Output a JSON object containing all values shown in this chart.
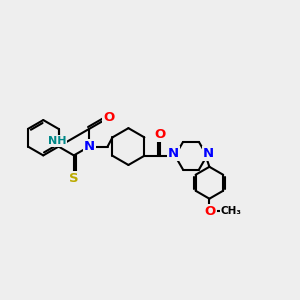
{
  "background_color": "#eeeeee",
  "bond_color": "#000000",
  "N_color": "#0000ff",
  "O_color": "#ff0000",
  "S_color": "#bbaa00",
  "H_color": "#008888",
  "label_fontsize": 8.5,
  "figsize": [
    3.0,
    3.0
  ],
  "dpi": 100,
  "xlim": [
    0,
    12
  ],
  "ylim": [
    0,
    12
  ]
}
